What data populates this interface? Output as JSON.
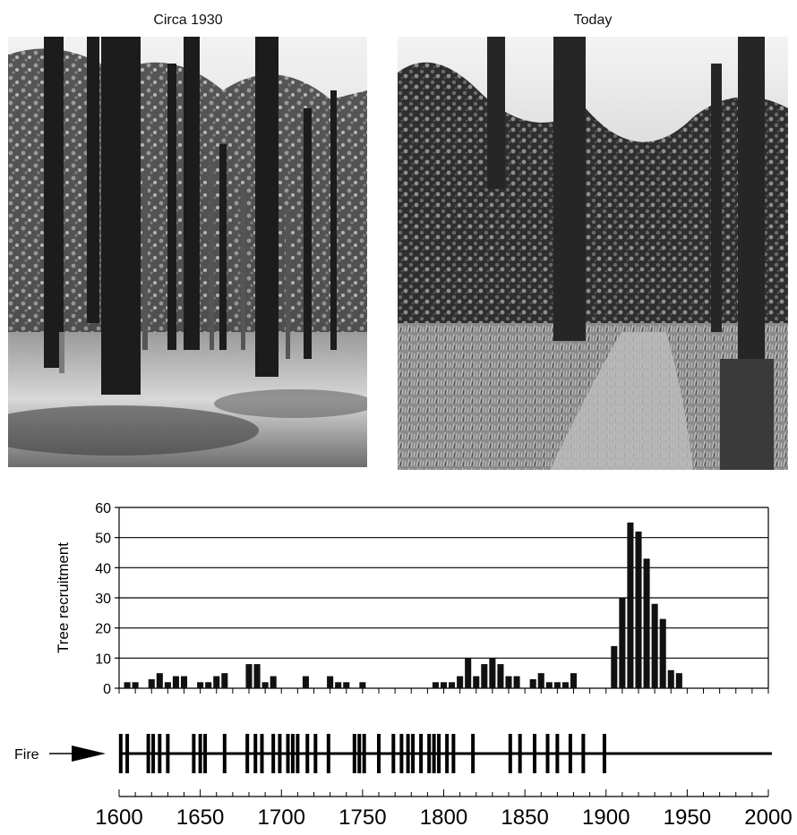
{
  "photos": {
    "left": {
      "caption": "Circa 1930"
    },
    "right": {
      "caption": "Today"
    }
  },
  "fire": {
    "label": "Fire",
    "arrow_icon": "right-arrow-icon",
    "scar_years": [
      1601,
      1605,
      1618,
      1621,
      1625,
      1630,
      1646,
      1650,
      1653,
      1665,
      1679,
      1684,
      1688,
      1695,
      1699,
      1704,
      1707,
      1710,
      1716,
      1721,
      1729,
      1745,
      1748,
      1751,
      1760,
      1769,
      1774,
      1778,
      1781,
      1786,
      1791,
      1794,
      1797,
      1802,
      1806,
      1818,
      1841,
      1847,
      1856,
      1864,
      1870,
      1878,
      1886,
      1899
    ]
  },
  "chart_data": {
    "type": "bar",
    "ylabel": "Tree recruitment",
    "xlabel": "",
    "ylim": [
      0,
      60
    ],
    "yticks": [
      0,
      10,
      20,
      30,
      40,
      50,
      60
    ],
    "xlim": [
      1600,
      2000
    ],
    "xticks": [
      1600,
      1650,
      1700,
      1750,
      1800,
      1850,
      1900,
      1950,
      2000
    ],
    "grid": "horizontal",
    "bin_width": 5,
    "x": [
      1605,
      1610,
      1620,
      1625,
      1630,
      1635,
      1640,
      1650,
      1655,
      1660,
      1665,
      1680,
      1685,
      1690,
      1695,
      1715,
      1730,
      1735,
      1740,
      1750,
      1795,
      1800,
      1805,
      1810,
      1815,
      1820,
      1825,
      1830,
      1835,
      1840,
      1845,
      1855,
      1860,
      1865,
      1870,
      1875,
      1880,
      1905,
      1910,
      1915,
      1920,
      1925,
      1930,
      1935,
      1940,
      1945
    ],
    "values": [
      2,
      2,
      3,
      5,
      2,
      4,
      4,
      2,
      2,
      4,
      5,
      8,
      8,
      2,
      4,
      4,
      4,
      2,
      2,
      2,
      2,
      2,
      2,
      4,
      10,
      4,
      8,
      10,
      8,
      4,
      4,
      3,
      5,
      2,
      2,
      2,
      5,
      14,
      30,
      55,
      52,
      43,
      28,
      23,
      6,
      5
    ]
  }
}
